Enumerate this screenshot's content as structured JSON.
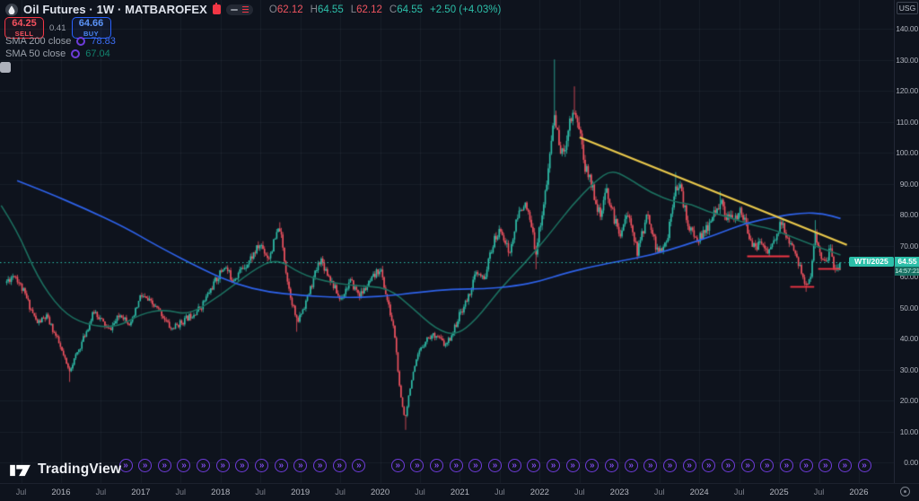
{
  "header": {
    "symbol_title": "Oil Futures · 1W · MATBAROFEX",
    "ohlc": {
      "o_label": "O",
      "o": "62.12",
      "h_label": "H",
      "h": "64.55",
      "l_label": "L",
      "l": "62.12",
      "c_label": "C",
      "c": "64.55",
      "change": "+2.50 (+4.03%)"
    },
    "sell": {
      "price": "64.25",
      "label": "SELL"
    },
    "spread": "0.41",
    "buy": {
      "price": "64.66",
      "label": "BUY"
    },
    "indicators": [
      {
        "label": "SMA 200 close",
        "value": "78.83"
      },
      {
        "label": "SMA 50 close",
        "value": "67.04"
      }
    ]
  },
  "brand": {
    "name": "TradingView"
  },
  "price_axis": {
    "currency": "USG",
    "labels": [
      "140.00",
      "130.00",
      "120.00",
      "110.00",
      "100.00",
      "90.00",
      "80.00",
      "70.00",
      "60.00",
      "50.00",
      "40.00",
      "30.00",
      "20.00",
      "10.00",
      "0.00"
    ],
    "last_price": "64.55",
    "countdown": "14:57:21"
  },
  "chart_labels": {
    "contract": "WTI/2025"
  },
  "time_axis": [
    "Jul",
    "2016",
    "Jul",
    "2017",
    "Jul",
    "2018",
    "Jul",
    "2019",
    "Jul",
    "2020",
    "Jul",
    "2021",
    "Jul",
    "2022",
    "Jul",
    "2023",
    "Jul",
    "2024",
    "Jul",
    "2025",
    "Jul",
    "2026"
  ],
  "event_marker": {
    "glyph": "»",
    "count": 39,
    "skip": [
      13
    ]
  },
  "chart_data": {
    "type": "candlestick",
    "title": "Oil Futures weekly (WTI, MATBAROFEX)",
    "x_domain_years": [
      2015.3,
      2026.05
    ],
    "y_domain_price": [
      0,
      145
    ],
    "axis": {
      "price_min": 0,
      "price_max": 140,
      "price_step": 10,
      "year_min": 2016,
      "year_max": 2026
    },
    "current_price": 64.55,
    "anchors": [
      [
        2015.3,
        58
      ],
      [
        2015.42,
        61
      ],
      [
        2015.55,
        54
      ],
      [
        2015.7,
        45
      ],
      [
        2015.82,
        47
      ],
      [
        2015.95,
        40
      ],
      [
        2016.1,
        29.5
      ],
      [
        2016.25,
        38
      ],
      [
        2016.42,
        49
      ],
      [
        2016.6,
        42.5
      ],
      [
        2016.75,
        48
      ],
      [
        2016.88,
        44.5
      ],
      [
        2017.0,
        54
      ],
      [
        2017.1,
        52
      ],
      [
        2017.25,
        48.5
      ],
      [
        2017.38,
        43
      ],
      [
        2017.55,
        46
      ],
      [
        2017.75,
        50
      ],
      [
        2017.9,
        57
      ],
      [
        2018.05,
        63.5
      ],
      [
        2018.15,
        59
      ],
      [
        2018.35,
        65
      ],
      [
        2018.5,
        70.5
      ],
      [
        2018.6,
        66
      ],
      [
        2018.74,
        76
      ],
      [
        2018.85,
        57
      ],
      [
        2018.96,
        45
      ],
      [
        2019.1,
        54
      ],
      [
        2019.25,
        66
      ],
      [
        2019.4,
        58
      ],
      [
        2019.5,
        52.5
      ],
      [
        2019.62,
        58.5
      ],
      [
        2019.75,
        54
      ],
      [
        2019.9,
        59
      ],
      [
        2020.0,
        63
      ],
      [
        2020.1,
        51
      ],
      [
        2020.18,
        42
      ],
      [
        2020.25,
        22
      ],
      [
        2020.31,
        14
      ],
      [
        2020.38,
        25
      ],
      [
        2020.48,
        35
      ],
      [
        2020.58,
        40
      ],
      [
        2020.7,
        41.5
      ],
      [
        2020.82,
        37.5
      ],
      [
        2020.92,
        42.5
      ],
      [
        2021.0,
        48
      ],
      [
        2021.1,
        53
      ],
      [
        2021.2,
        61
      ],
      [
        2021.3,
        59
      ],
      [
        2021.42,
        71
      ],
      [
        2021.52,
        75.5
      ],
      [
        2021.62,
        67
      ],
      [
        2021.72,
        79
      ],
      [
        2021.8,
        84
      ],
      [
        2021.88,
        78
      ],
      [
        2021.95,
        68
      ],
      [
        2022.02,
        79
      ],
      [
        2022.1,
        92
      ],
      [
        2022.18,
        113
      ],
      [
        2022.24,
        103
      ],
      [
        2022.3,
        99
      ],
      [
        2022.36,
        109
      ],
      [
        2022.43,
        114
      ],
      [
        2022.5,
        108
      ],
      [
        2022.57,
        95
      ],
      [
        2022.63,
        92
      ],
      [
        2022.7,
        85
      ],
      [
        2022.76,
        79
      ],
      [
        2022.84,
        88
      ],
      [
        2022.92,
        80
      ],
      [
        2023.0,
        73.5
      ],
      [
        2023.08,
        80
      ],
      [
        2023.16,
        76.5
      ],
      [
        2023.22,
        67.5
      ],
      [
        2023.3,
        75.5
      ],
      [
        2023.36,
        80.5
      ],
      [
        2023.45,
        70
      ],
      [
        2023.52,
        67.5
      ],
      [
        2023.6,
        72
      ],
      [
        2023.7,
        90.5
      ],
      [
        2023.77,
        88
      ],
      [
        2023.85,
        77.5
      ],
      [
        2023.95,
        72
      ],
      [
        2024.05,
        73.5
      ],
      [
        2024.15,
        78
      ],
      [
        2024.26,
        84.5
      ],
      [
        2024.35,
        79
      ],
      [
        2024.45,
        78
      ],
      [
        2024.52,
        82.5
      ],
      [
        2024.6,
        75
      ],
      [
        2024.7,
        68.5
      ],
      [
        2024.78,
        71.5
      ],
      [
        2024.85,
        68
      ],
      [
        2024.95,
        71.5
      ],
      [
        2025.03,
        77.5
      ],
      [
        2025.12,
        71
      ],
      [
        2025.2,
        67
      ],
      [
        2025.28,
        62
      ],
      [
        2025.33,
        56.5
      ],
      [
        2025.4,
        61.5
      ],
      [
        2025.46,
        74
      ],
      [
        2025.52,
        66.5
      ],
      [
        2025.58,
        65
      ],
      [
        2025.64,
        68.5
      ],
      [
        2025.7,
        62.5
      ],
      [
        2025.76,
        64.55
      ]
    ],
    "last_candle": {
      "o": 62.12,
      "h": 64.55,
      "l": 62.12,
      "c": 64.55
    },
    "wick_events": [
      [
        2016.1,
        "low",
        26.0
      ],
      [
        2018.74,
        "high",
        77.6
      ],
      [
        2018.96,
        "low",
        42.2
      ],
      [
        2020.31,
        "low",
        10.5
      ],
      [
        2021.95,
        "low",
        62.4
      ],
      [
        2022.18,
        "high",
        130.2
      ],
      [
        2022.43,
        "high",
        121.5
      ],
      [
        2023.7,
        "high",
        93.8
      ],
      [
        2024.26,
        "high",
        87.6
      ],
      [
        2025.33,
        "low",
        55.1
      ],
      [
        2025.46,
        "high",
        78.3
      ]
    ],
    "series": [
      {
        "name": "SMA 200",
        "color": "#2e62e9",
        "points": [
          [
            2015.45,
            91
          ],
          [
            2015.8,
            87.5
          ],
          [
            2016.3,
            82
          ],
          [
            2016.8,
            76
          ],
          [
            2017.2,
            70
          ],
          [
            2017.8,
            62
          ],
          [
            2018.2,
            57.5
          ],
          [
            2018.6,
            55
          ],
          [
            2019.0,
            54
          ],
          [
            2019.5,
            53.2
          ],
          [
            2020.0,
            53.5
          ],
          [
            2020.5,
            55
          ],
          [
            2020.9,
            56
          ],
          [
            2021.3,
            56
          ],
          [
            2021.7,
            57
          ],
          [
            2022.0,
            58.5
          ],
          [
            2022.3,
            61
          ],
          [
            2022.7,
            63.5
          ],
          [
            2023.0,
            65
          ],
          [
            2023.4,
            67
          ],
          [
            2023.8,
            70
          ],
          [
            2024.2,
            73.5
          ],
          [
            2024.6,
            77.5
          ],
          [
            2025.0,
            79.5
          ],
          [
            2025.3,
            80.7
          ],
          [
            2025.55,
            80.4
          ],
          [
            2025.77,
            78.8
          ]
        ]
      },
      {
        "name": "SMA 50",
        "color": "#1c6f5f",
        "points": [
          [
            2015.25,
            83
          ],
          [
            2015.45,
            75
          ],
          [
            2015.7,
            60
          ],
          [
            2016.0,
            49
          ],
          [
            2016.3,
            44.5
          ],
          [
            2016.7,
            43.5
          ],
          [
            2017.0,
            48
          ],
          [
            2017.3,
            49.5
          ],
          [
            2017.6,
            47.5
          ],
          [
            2018.0,
            54
          ],
          [
            2018.4,
            62
          ],
          [
            2018.7,
            66
          ],
          [
            2019.0,
            61
          ],
          [
            2019.3,
            58.5
          ],
          [
            2019.7,
            57
          ],
          [
            2020.1,
            56.5
          ],
          [
            2020.4,
            50
          ],
          [
            2020.7,
            43
          ],
          [
            2020.95,
            41
          ],
          [
            2021.2,
            46
          ],
          [
            2021.5,
            56
          ],
          [
            2021.8,
            64
          ],
          [
            2022.1,
            73
          ],
          [
            2022.4,
            83
          ],
          [
            2022.7,
            91
          ],
          [
            2022.9,
            94.5
          ],
          [
            2023.1,
            92
          ],
          [
            2023.4,
            87
          ],
          [
            2023.7,
            84
          ],
          [
            2023.9,
            83.5
          ],
          [
            2024.1,
            81
          ],
          [
            2024.35,
            79.5
          ],
          [
            2024.6,
            77
          ],
          [
            2024.9,
            75.5
          ],
          [
            2025.1,
            73.5
          ],
          [
            2025.35,
            71
          ],
          [
            2025.55,
            69
          ],
          [
            2025.77,
            67.0
          ]
        ]
      }
    ],
    "trendline": {
      "color": "#e9c84b",
      "from": [
        2022.5,
        105.0
      ],
      "to": [
        2025.85,
        70.3
      ]
    },
    "support_lines": [
      {
        "from_year": 2024.6,
        "to_year": 2025.13,
        "price": 66.7
      },
      {
        "from_year": 2025.14,
        "to_year": 2025.44,
        "price": 56.8
      },
      {
        "from_year": 2025.49,
        "to_year": 2025.77,
        "price": 62.6
      }
    ],
    "colors": {
      "up": "#2fbda8",
      "down": "#ef5360",
      "sma200": "#2e62e9",
      "sma50": "#1c6f5f",
      "trend": "#e9c84b",
      "marker_purple": "#6e3cd9",
      "sell": "#f23645",
      "buy": "#2962ff",
      "price_label_bg": "#2cbfa9",
      "background": "#0e131d"
    }
  }
}
